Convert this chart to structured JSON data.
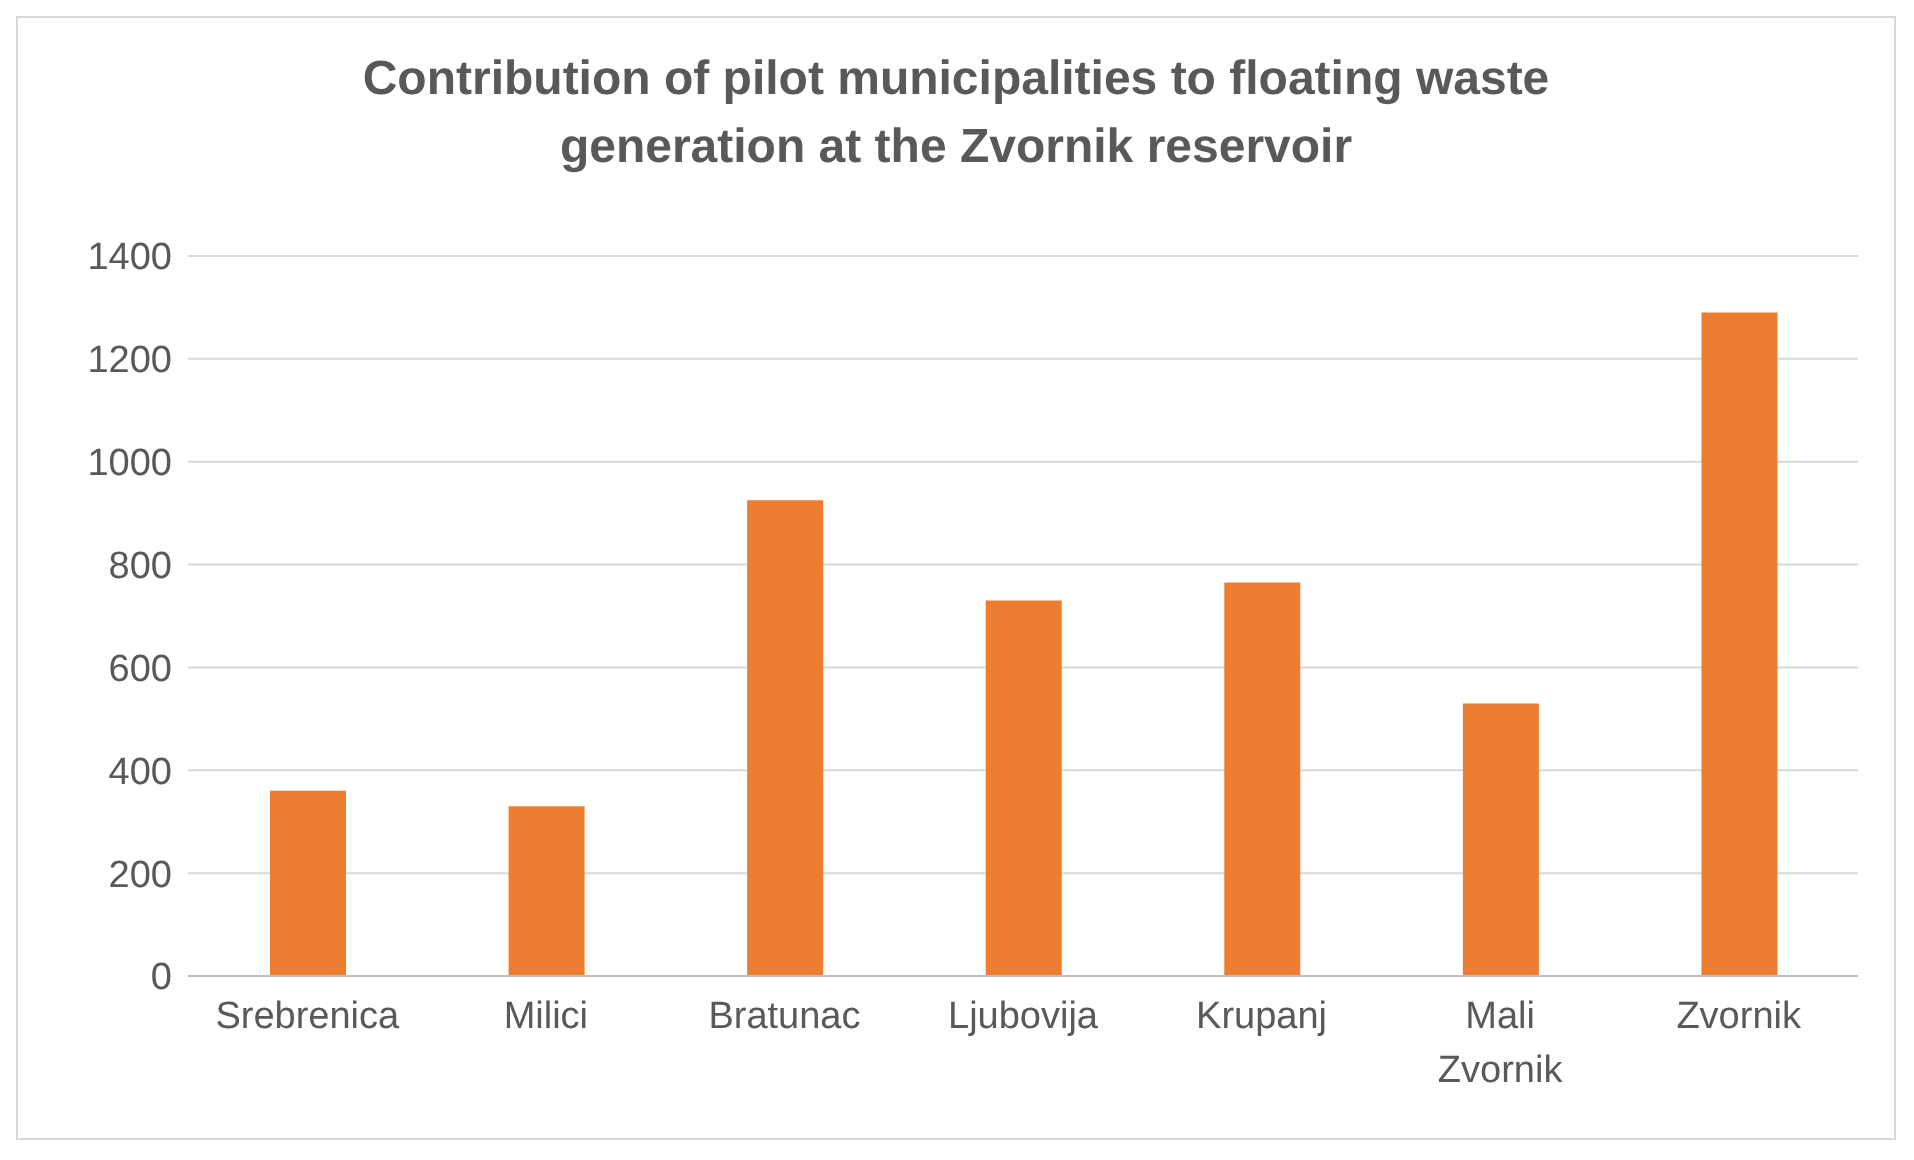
{
  "chart_data": {
    "type": "bar",
    "title": "Contribution of pilot municipalities to floating waste generation at the Zvornik reservoir",
    "categories": [
      "Srebrenica",
      "Milici",
      "Bratunac",
      "Ljubovija",
      "Krupanj",
      "Mali Zvornik",
      "Zvornik"
    ],
    "values": [
      360,
      330,
      925,
      730,
      765,
      530,
      1290
    ],
    "color": "#ed7d31",
    "ylim": [
      0,
      1400
    ],
    "yticks": [
      0,
      200,
      400,
      600,
      800,
      1000,
      1200,
      1400
    ],
    "grid": "y"
  }
}
